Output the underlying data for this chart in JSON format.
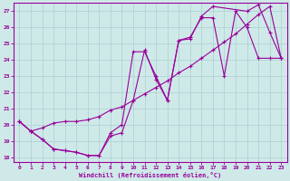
{
  "xlabel": "Windchill (Refroidissement éolien,°C)",
  "bg_color": "#cfe9e9",
  "grid_color": "#b0d4d4",
  "line_color": "#990099",
  "xlim": [
    -0.5,
    23.5
  ],
  "ylim": [
    17.7,
    27.5
  ],
  "xticks": [
    0,
    1,
    2,
    3,
    4,
    5,
    6,
    7,
    8,
    9,
    10,
    11,
    12,
    13,
    14,
    15,
    16,
    17,
    18,
    19,
    20,
    21,
    22,
    23
  ],
  "yticks": [
    18,
    19,
    20,
    21,
    22,
    23,
    24,
    25,
    26,
    27
  ],
  "line1_x": [
    0,
    1,
    2,
    3,
    4,
    5,
    6,
    7,
    8,
    9,
    10,
    11,
    12,
    13,
    14,
    15,
    16,
    17,
    20,
    21,
    22,
    23
  ],
  "line1_y": [
    20.2,
    19.6,
    19.1,
    18.5,
    18.4,
    18.3,
    18.1,
    18.1,
    19.3,
    19.5,
    21.5,
    24.6,
    22.8,
    21.5,
    25.2,
    25.3,
    26.7,
    27.3,
    27.0,
    27.4,
    25.7,
    24.1
  ],
  "line2_x": [
    0,
    1,
    2,
    3,
    4,
    5,
    6,
    7,
    8,
    9,
    10,
    11,
    12,
    13,
    14,
    15,
    16,
    17,
    18,
    19,
    20,
    21,
    22,
    23
  ],
  "line2_y": [
    20.2,
    19.6,
    19.8,
    20.1,
    20.2,
    20.2,
    20.3,
    20.5,
    20.9,
    21.1,
    21.5,
    21.9,
    22.3,
    22.7,
    23.2,
    23.6,
    24.1,
    24.6,
    25.1,
    25.6,
    26.2,
    26.8,
    27.3,
    24.1
  ],
  "line3_x": [
    0,
    1,
    2,
    3,
    4,
    5,
    6,
    7,
    8,
    9,
    10,
    11,
    12,
    13,
    14,
    15,
    16,
    17,
    18,
    19,
    20,
    21,
    22,
    23
  ],
  "line3_y": [
    20.2,
    19.6,
    19.1,
    18.5,
    18.4,
    18.3,
    18.1,
    18.1,
    19.5,
    20.0,
    24.5,
    24.5,
    23.0,
    21.5,
    25.2,
    25.4,
    26.6,
    26.6,
    23.0,
    27.0,
    26.0,
    24.1,
    24.1,
    24.1
  ]
}
